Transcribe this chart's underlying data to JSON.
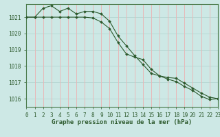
{
  "title": "Graphe pression niveau de la mer (hPa)",
  "background_color": "#cde8e5",
  "grid_color_h": "#b8d8d4",
  "grid_color_v": "#e8b8b8",
  "line_color": "#2d5a2d",
  "spine_color": "#4a7a4a",
  "tick_color": "#2d5a2d",
  "xlim": [
    0,
    23
  ],
  "ylim": [
    1015.5,
    1021.8
  ],
  "yticks": [
    1016,
    1017,
    1018,
    1019,
    1020,
    1021
  ],
  "xticks": [
    0,
    1,
    2,
    3,
    4,
    5,
    6,
    7,
    8,
    9,
    10,
    11,
    12,
    13,
    14,
    15,
    16,
    17,
    18,
    19,
    20,
    21,
    22,
    23
  ],
  "series1_x": [
    0,
    1,
    2,
    3,
    4,
    5,
    6,
    7,
    8,
    9,
    10,
    11,
    12,
    13,
    14,
    15,
    16,
    17,
    18,
    19,
    20,
    21,
    22,
    23
  ],
  "series1_y": [
    1021.0,
    1021.0,
    1021.55,
    1021.7,
    1021.35,
    1021.55,
    1021.2,
    1021.35,
    1021.35,
    1021.2,
    1020.75,
    1019.85,
    1019.25,
    1018.65,
    1018.1,
    1017.55,
    1017.4,
    1017.2,
    1017.05,
    1016.75,
    1016.5,
    1016.15,
    1015.95,
    1016.0
  ],
  "series2_x": [
    0,
    1,
    2,
    3,
    4,
    5,
    6,
    7,
    8,
    9,
    10,
    11,
    12,
    13,
    14,
    15,
    16,
    17,
    18,
    19,
    20,
    21,
    22,
    23
  ],
  "series2_y": [
    1021.0,
    1021.0,
    1021.0,
    1021.0,
    1021.0,
    1021.0,
    1021.0,
    1021.0,
    1020.95,
    1020.7,
    1020.3,
    1019.45,
    1018.75,
    1018.55,
    1018.4,
    1017.8,
    1017.4,
    1017.3,
    1017.25,
    1016.95,
    1016.65,
    1016.35,
    1016.1,
    1016.0
  ],
  "title_fontsize": 6.5,
  "tick_fontsize": 5.5
}
